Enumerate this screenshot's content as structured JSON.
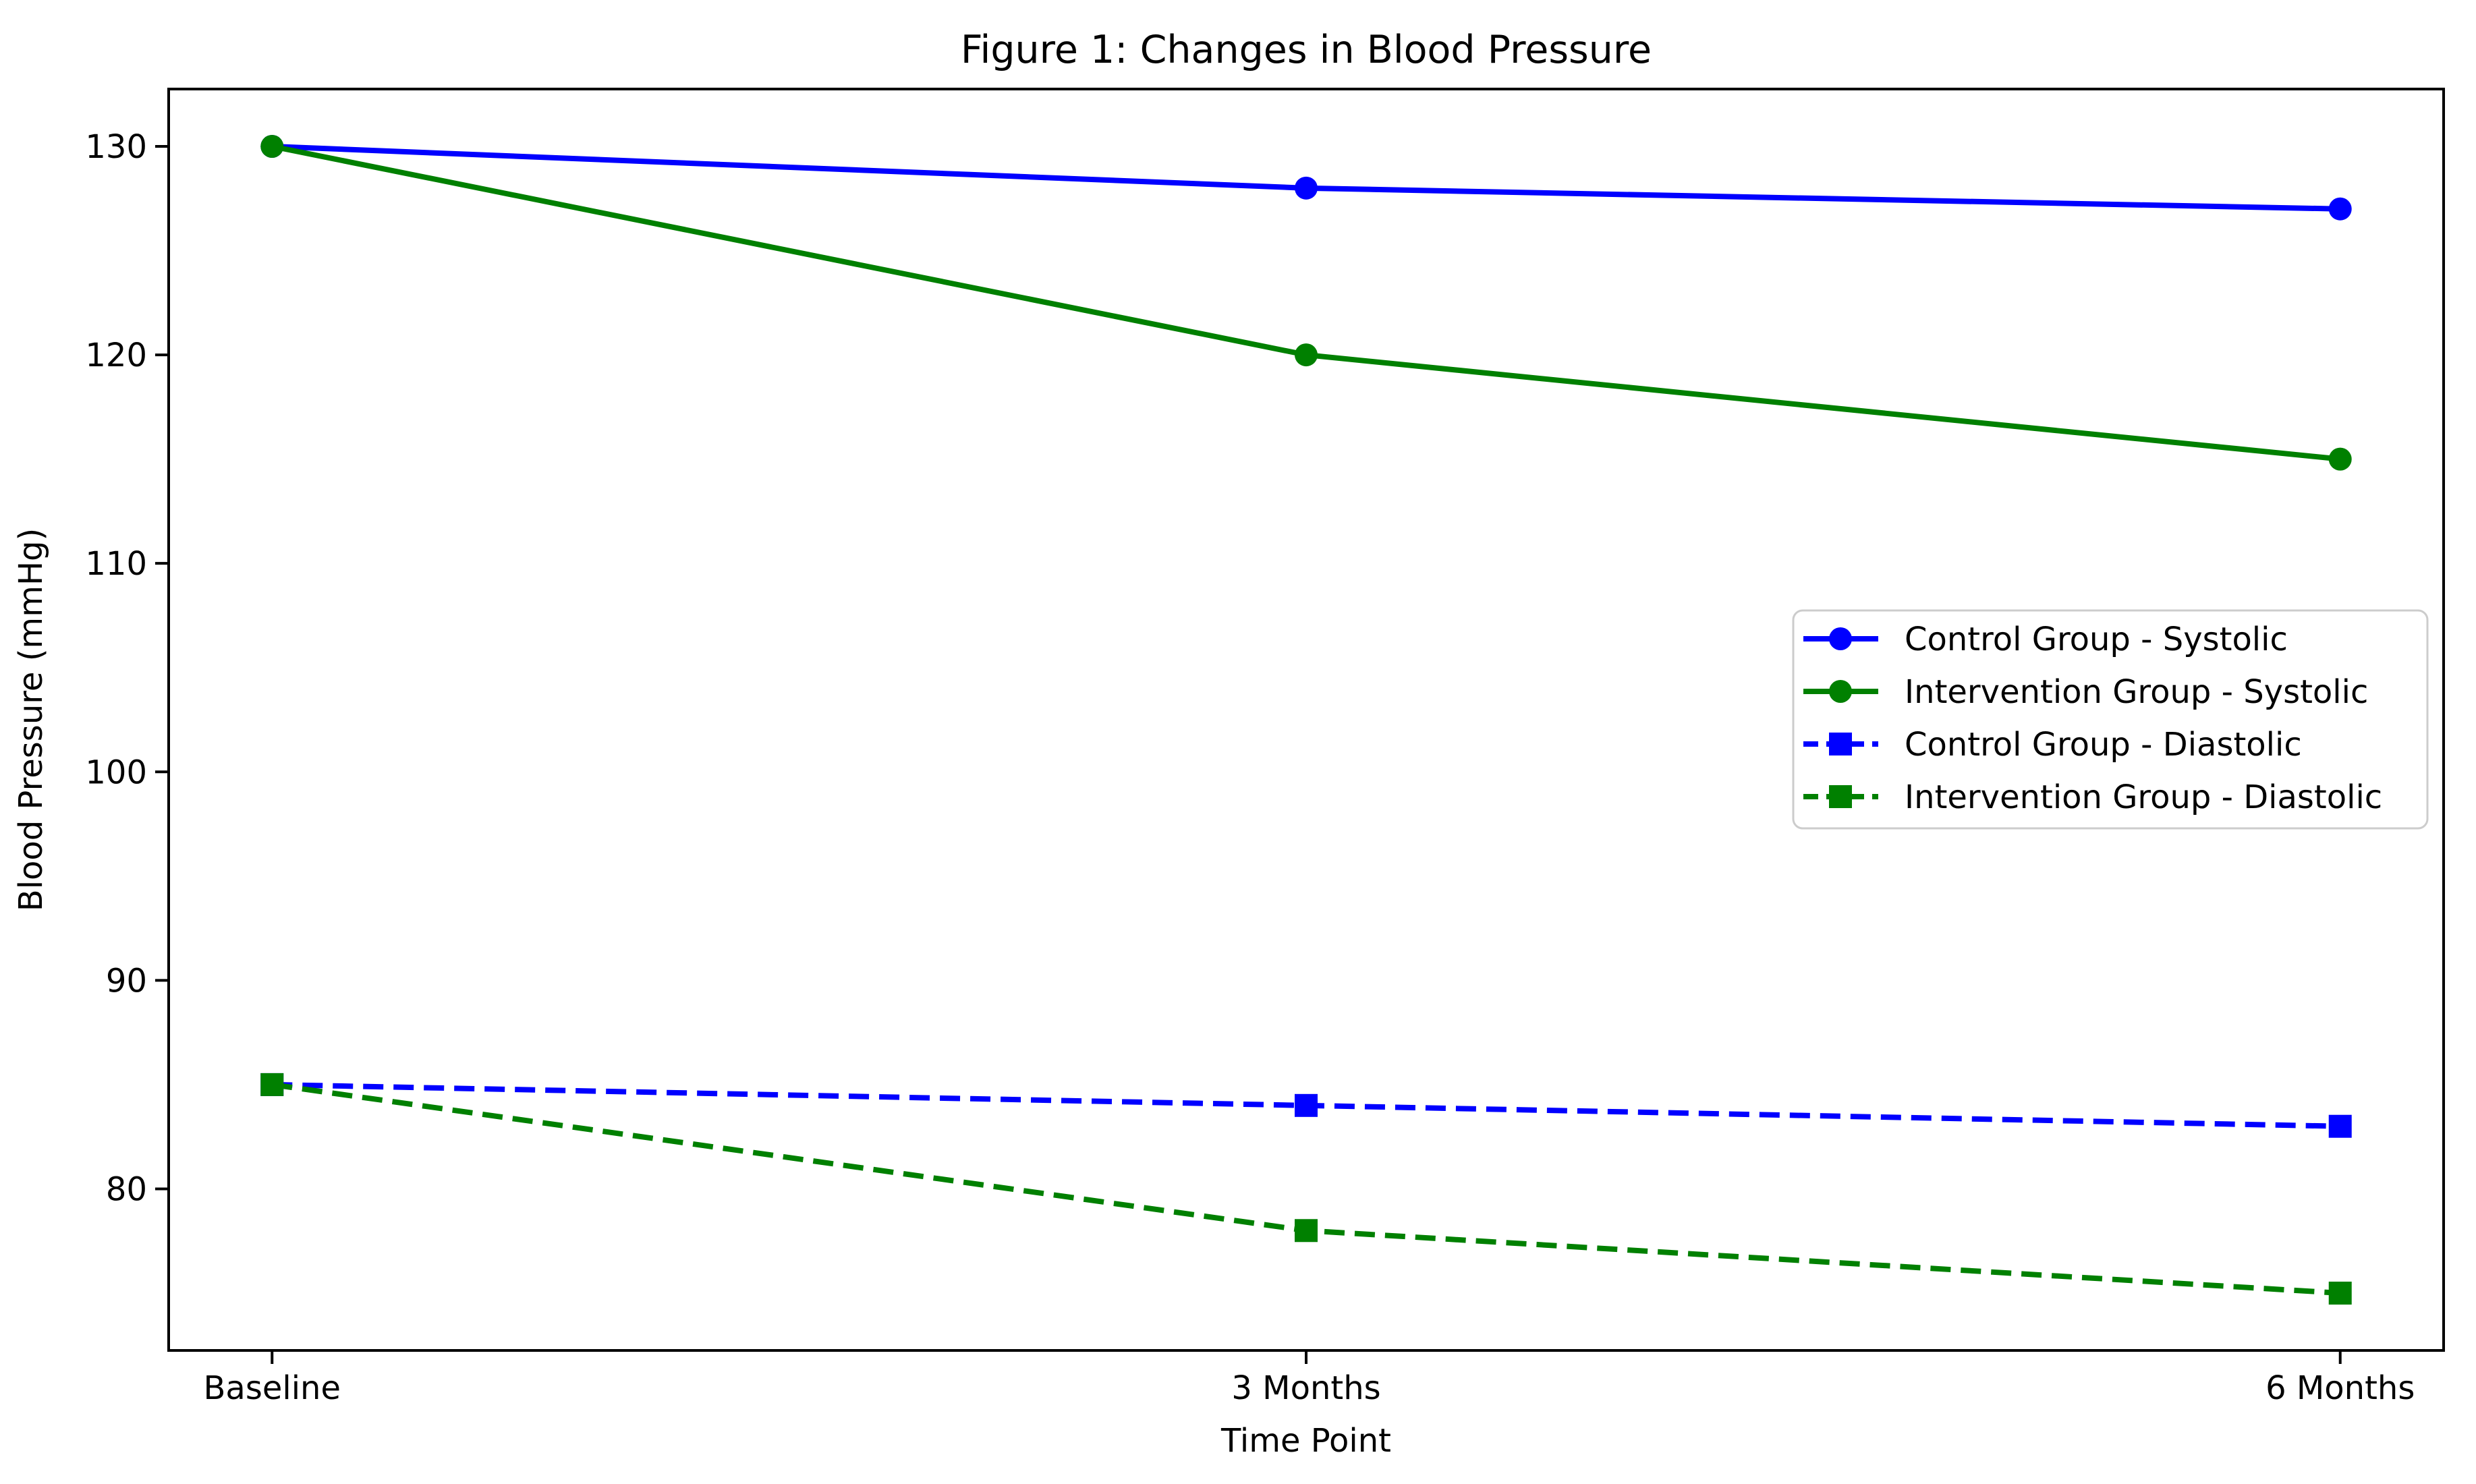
{
  "chart_data": {
    "type": "line",
    "title": "Figure 1: Changes in Blood Pressure",
    "xlabel": "Time Point",
    "ylabel": "Blood Pressure (mmHg)",
    "categories": [
      "Baseline",
      "3 Months",
      "6 Months"
    ],
    "series": [
      {
        "name": "Control Group - Systolic",
        "values": [
          130,
          128,
          127
        ],
        "color": "#0000ff",
        "line_style": "solid",
        "marker": "circle"
      },
      {
        "name": "Intervention Group - Systolic",
        "values": [
          130,
          120,
          115
        ],
        "color": "#008000",
        "line_style": "solid",
        "marker": "circle"
      },
      {
        "name": "Control Group - Diastolic",
        "values": [
          85,
          84,
          83
        ],
        "color": "#0000ff",
        "line_style": "dashed",
        "marker": "square"
      },
      {
        "name": "Intervention Group - Diastolic",
        "values": [
          85,
          78,
          75
        ],
        "color": "#008000",
        "line_style": "dashed",
        "marker": "square"
      }
    ],
    "yticks": [
      80,
      90,
      100,
      110,
      120,
      130
    ],
    "ylim": [
      72.25,
      132.75
    ],
    "xlim": [
      -0.1,
      2.1
    ],
    "grid": false,
    "legend_position": "center-right",
    "legend_border_color": "#cccccc",
    "axis_color": "#000000",
    "background_color": "#ffffff"
  }
}
